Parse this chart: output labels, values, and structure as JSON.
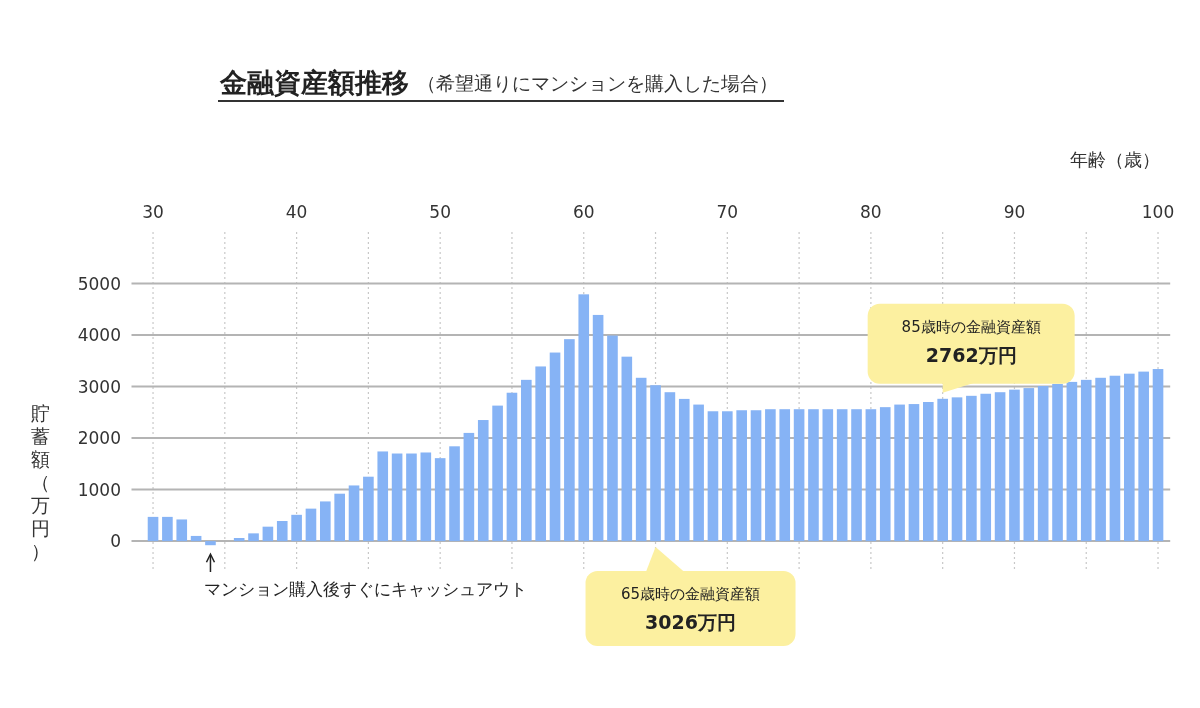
{
  "chart_data": {
    "type": "bar",
    "title": "金融資産額推移",
    "subtitle": "（希望通りにマンションを購入した場合）",
    "xlabel": "年齢（歳）",
    "ylabel": "貯蓄額（万円）",
    "x": [
      30,
      31,
      32,
      33,
      34,
      35,
      36,
      37,
      38,
      39,
      40,
      41,
      42,
      43,
      44,
      45,
      46,
      47,
      48,
      49,
      50,
      51,
      52,
      53,
      54,
      55,
      56,
      57,
      58,
      59,
      60,
      61,
      62,
      63,
      64,
      65,
      66,
      67,
      68,
      69,
      70,
      71,
      72,
      73,
      74,
      75,
      76,
      77,
      78,
      79,
      80,
      81,
      82,
      83,
      84,
      85,
      86,
      87,
      88,
      89,
      90,
      91,
      92,
      93,
      94,
      95,
      96,
      97,
      98,
      99,
      100
    ],
    "values": [
      470,
      470,
      420,
      100,
      -80,
      0,
      60,
      150,
      280,
      390,
      510,
      630,
      770,
      920,
      1080,
      1250,
      1740,
      1700,
      1700,
      1720,
      1610,
      1840,
      2100,
      2350,
      2630,
      2880,
      3130,
      3390,
      3660,
      3920,
      4790,
      4390,
      3990,
      3580,
      3170,
      3026,
      2890,
      2760,
      2650,
      2520,
      2520,
      2540,
      2540,
      2560,
      2560,
      2560,
      2560,
      2560,
      2560,
      2560,
      2560,
      2600,
      2650,
      2660,
      2700,
      2762,
      2790,
      2820,
      2860,
      2890,
      2940,
      2970,
      3010,
      3050,
      3090,
      3130,
      3170,
      3210,
      3250,
      3290,
      3340
    ],
    "color": "#86b3f5",
    "xlim": [
      28.5,
      100.5
    ],
    "xticks": [
      30,
      {
        "value": 35,
        "label": null
      },
      40,
      {
        "value": 45,
        "label": null
      },
      50,
      {
        "value": 55,
        "label": null
      },
      60,
      {
        "value": 65,
        "label": null
      },
      70,
      {
        "value": 75,
        "label": null
      },
      80,
      {
        "value": 85,
        "label": null
      },
      90,
      {
        "value": 95,
        "label": null
      },
      100
    ],
    "ylim": [
      -600,
      6000
    ],
    "yticks": [
      0,
      1000,
      2000,
      3000,
      4000,
      5000
    ],
    "grid": true,
    "annotations": [
      {
        "text": "マンション購入後すぐにキャッシュアウト",
        "x": 34,
        "y": -80
      },
      {
        "text": "65歳時の金融資産額\n3026万円",
        "x": 65,
        "y": 0
      },
      {
        "text": "85歳時の金融資産額\n2762万円",
        "x": 85,
        "y": 2762
      }
    ]
  }
}
